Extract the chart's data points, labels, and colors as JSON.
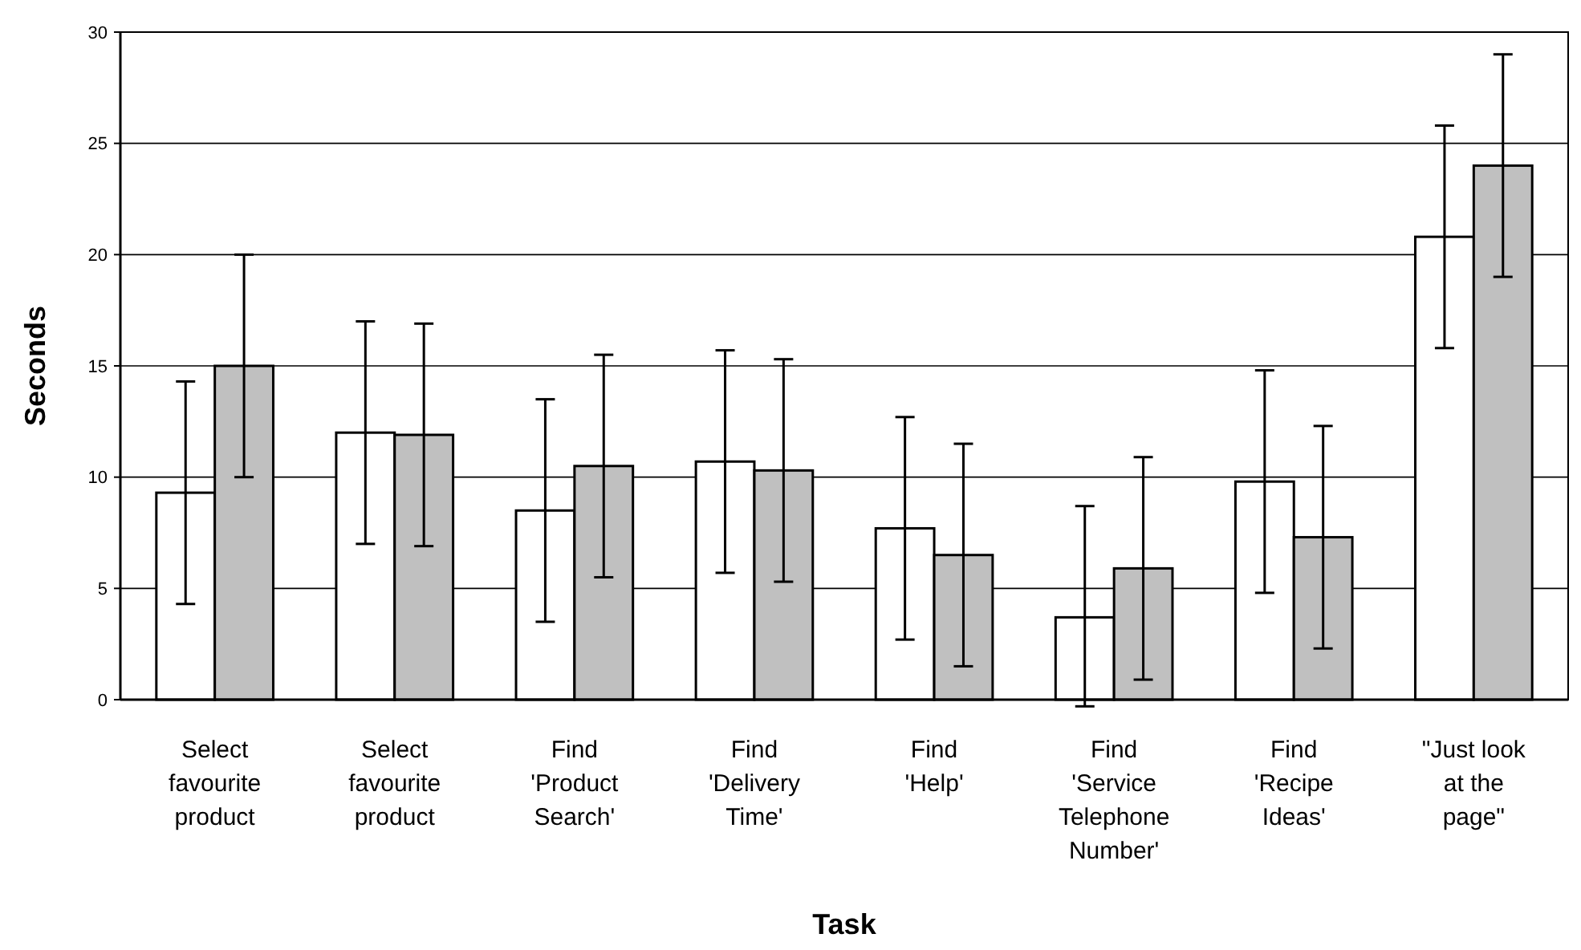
{
  "chart_data": {
    "type": "bar",
    "xlabel": "Task",
    "ylabel": "Seconds",
    "categories": [
      "Select favourite product",
      "Select favourite product",
      "Find 'Product Search'",
      "Find 'Delivery Time'",
      "Find 'Help'",
      "Find 'Service Telephone Number'",
      "Find 'Recipe Ideas'",
      "\"Just look at the page\""
    ],
    "series": [
      {
        "color": "#ffffff",
        "values": [
          9.3,
          12,
          8.5,
          10.7,
          7.7,
          3.7,
          9.8,
          20.8
        ],
        "errors": [
          5,
          5,
          5,
          5,
          5,
          [
            -0.3,
            8.7
          ],
          5,
          5
        ]
      },
      {
        "color": "#c0c0c0",
        "values": [
          15,
          11.9,
          10.5,
          10.3,
          6.5,
          5.9,
          7.3,
          24
        ],
        "errors": [
          5,
          5,
          5,
          5,
          5,
          5,
          5,
          5
        ]
      }
    ],
    "ylim": [
      0,
      30
    ],
    "yticks": [
      0,
      5,
      10,
      15,
      20,
      25,
      30
    ],
    "grid": "y"
  }
}
